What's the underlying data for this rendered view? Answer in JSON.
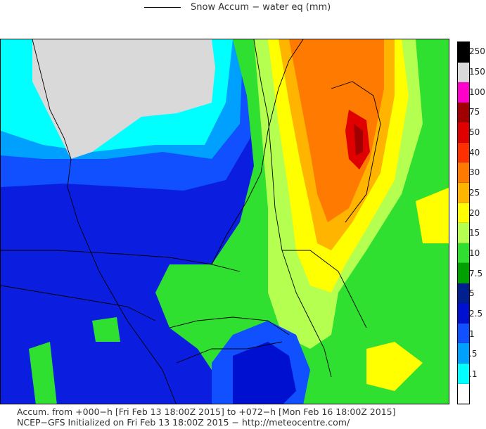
{
  "legend": {
    "title": "Snow Accum − water eq (mm)"
  },
  "colorbar": {
    "bins": [
      {
        "label": "250",
        "color": "#000000"
      },
      {
        "label": "150",
        "color": "#d9d9d9"
      },
      {
        "label": "100",
        "color": "#ff00cc"
      },
      {
        "label": "75",
        "color": "#a00000"
      },
      {
        "label": "50",
        "color": "#e00000"
      },
      {
        "label": "40",
        "color": "#ff3000"
      },
      {
        "label": "30",
        "color": "#ff7a00"
      },
      {
        "label": "25",
        "color": "#ffb400"
      },
      {
        "label": "20",
        "color": "#ffff00"
      },
      {
        "label": "15",
        "color": "#b4ff50"
      },
      {
        "label": "10",
        "color": "#30e030"
      },
      {
        "label": "7.5",
        "color": "#00a000"
      },
      {
        "label": "5",
        "color": "#002090"
      },
      {
        "label": "2.5",
        "color": "#0010d0"
      },
      {
        "label": "1",
        "color": "#1050ff"
      },
      {
        "label": ".5",
        "color": "#00a0ff"
      },
      {
        "label": ".1",
        "color": "#00ffff"
      },
      {
        "label": "",
        "color": "#ffffff"
      }
    ]
  },
  "footer": {
    "line1": "Accum. from +000−h [Fri Feb 13 18:00Z 2015] to +072−h [Mon Feb 16 18:00Z 2015]",
    "line2": "NCEP−GFS Initialized on Fri Feb 13 18:00Z 2015 − http://meteocentre.com/"
  }
}
